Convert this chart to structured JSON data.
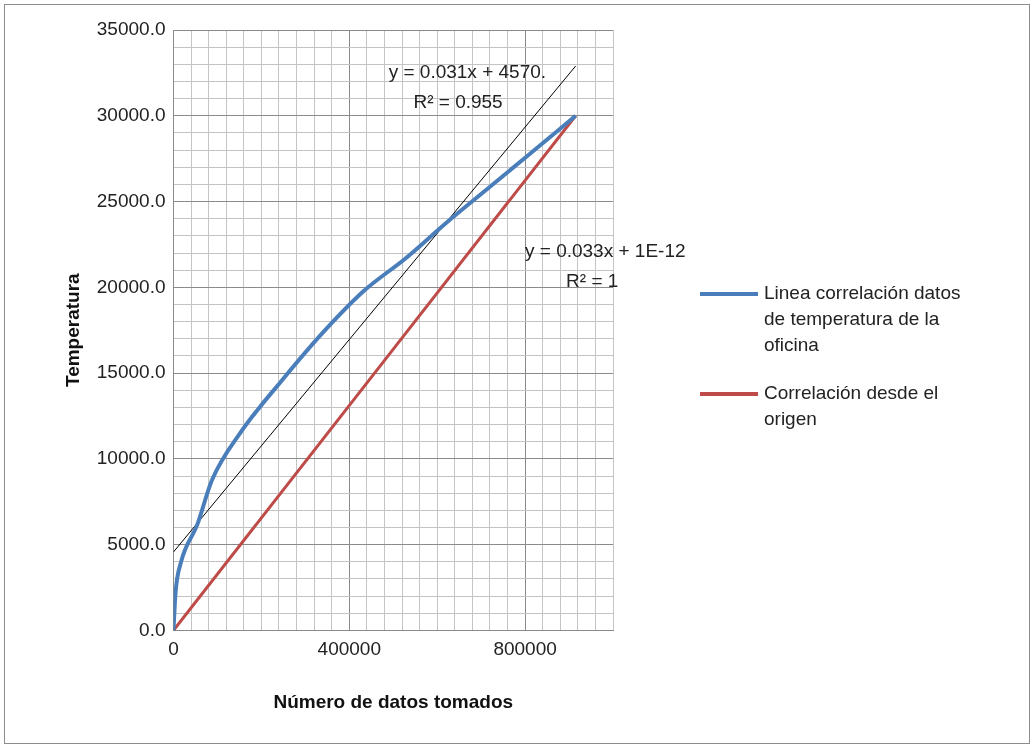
{
  "chart_data": {
    "type": "line",
    "xlabel": "Número de datos tomados",
    "ylabel": "Temperatura",
    "xlim": [
      0,
      1000000
    ],
    "xticks": [
      0,
      {
        "value": 40000,
        "label": null
      },
      {
        "value": 80000,
        "label": null
      },
      {
        "value": 120000,
        "label": null
      },
      {
        "value": 160000,
        "label": null
      },
      {
        "value": 200000,
        "label": null
      },
      {
        "value": 240000,
        "label": null
      },
      {
        "value": 280000,
        "label": null
      },
      {
        "value": 320000,
        "label": null
      },
      {
        "value": 360000,
        "label": null
      },
      400000,
      {
        "value": 440000,
        "label": null
      },
      {
        "value": 480000,
        "label": null
      },
      {
        "value": 520000,
        "label": null
      },
      {
        "value": 560000,
        "label": null
      },
      {
        "value": 600000,
        "label": null
      },
      {
        "value": 640000,
        "label": null
      },
      {
        "value": 680000,
        "label": null
      },
      {
        "value": 720000,
        "label": null
      },
      {
        "value": 760000,
        "label": null
      },
      800000,
      {
        "value": 840000,
        "label": null
      },
      {
        "value": 880000,
        "label": null
      },
      {
        "value": 920000,
        "label": null
      },
      {
        "value": 960000,
        "label": null
      },
      {
        "value": 1000000,
        "label": null
      }
    ],
    "ylim": [
      0,
      35000
    ],
    "yticks": [
      {
        "value": 0,
        "label": "0.0"
      },
      {
        "value": 1000,
        "label": null
      },
      {
        "value": 2000,
        "label": null
      },
      {
        "value": 3000,
        "label": null
      },
      {
        "value": 4000,
        "label": null
      },
      {
        "value": 5000,
        "label": "5000.0"
      },
      {
        "value": 6000,
        "label": null
      },
      {
        "value": 7000,
        "label": null
      },
      {
        "value": 8000,
        "label": null
      },
      {
        "value": 9000,
        "label": null
      },
      {
        "value": 10000,
        "label": "10000.0"
      },
      {
        "value": 11000,
        "label": null
      },
      {
        "value": 12000,
        "label": null
      },
      {
        "value": 13000,
        "label": null
      },
      {
        "value": 14000,
        "label": null
      },
      {
        "value": 15000,
        "label": "15000.0"
      },
      {
        "value": 16000,
        "label": null
      },
      {
        "value": 17000,
        "label": null
      },
      {
        "value": 18000,
        "label": null
      },
      {
        "value": 19000,
        "label": null
      },
      {
        "value": 20000,
        "label": "20000.0"
      },
      {
        "value": 21000,
        "label": null
      },
      {
        "value": 22000,
        "label": null
      },
      {
        "value": 23000,
        "label": null
      },
      {
        "value": 24000,
        "label": null
      },
      {
        "value": 25000,
        "label": "25000.0"
      },
      {
        "value": 26000,
        "label": null
      },
      {
        "value": 27000,
        "label": null
      },
      {
        "value": 28000,
        "label": null
      },
      {
        "value": 29000,
        "label": null
      },
      {
        "value": 30000,
        "label": "30000.0"
      },
      {
        "value": 31000,
        "label": null
      },
      {
        "value": 32000,
        "label": null
      },
      {
        "value": 33000,
        "label": null
      },
      {
        "value": 34000,
        "label": null
      },
      {
        "value": 35000,
        "label": "35000.0"
      }
    ],
    "grid": true,
    "legend": "right",
    "marker": "none",
    "line_style": "solid",
    "series": [
      {
        "name": "Linea correlación datos de temperatura de la oficina",
        "color": "#4a7ebb",
        "x": [
          0,
          4700,
          16900,
          54400,
          87200,
          152800,
          246600,
          340300,
          434100,
          527800,
          621600,
          715300,
          809100,
          915000
        ],
        "values": [
          0,
          2210,
          3960,
          6180,
          8740,
          11540,
          14570,
          17370,
          19810,
          21680,
          23780,
          25760,
          27740,
          30000
        ]
      },
      {
        "name": "Correlación desde el origen",
        "color": "#be4b48",
        "x": [
          0,
          915000
        ],
        "values": [
          0,
          30000
        ]
      },
      {
        "color": "#000000",
        "x": [
          0,
          915000
        ],
        "values": [
          4570,
          32900
        ]
      }
    ],
    "annotations": [
      "y = 0.031x + 4570.",
      "R² = 0.955",
      "y = 0.033x + 1E-12",
      "R² = 1"
    ]
  }
}
